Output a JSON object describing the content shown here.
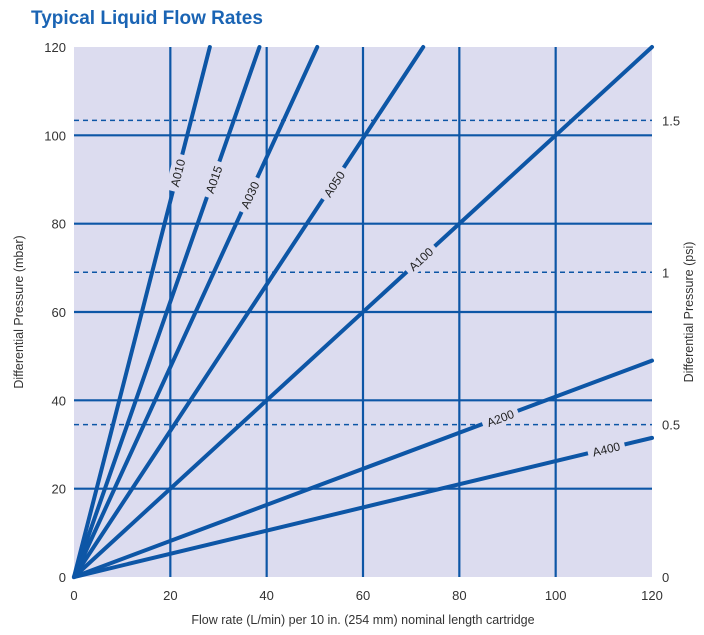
{
  "chart_data": {
    "type": "line",
    "title": "Typical Liquid Flow Rates",
    "xlabel": "Flow rate (L/min) per 10 in. (254 mm) nominal length cartridge",
    "ylabel": "Differential Pressure (mbar)",
    "y2label": "Differential Pressure (psi)",
    "xlim": [
      0,
      120
    ],
    "ylim": [
      0,
      120
    ],
    "x_ticks": [
      0,
      20,
      40,
      60,
      80,
      100,
      120
    ],
    "y_ticks": [
      0,
      20,
      40,
      60,
      80,
      100,
      120
    ],
    "y2_ticks": [
      {
        "label": "0",
        "mbar": 0
      },
      {
        "label": "0.5",
        "mbar": 34.5
      },
      {
        "label": "1",
        "mbar": 69
      },
      {
        "label": "1.5",
        "mbar": 103.4
      }
    ],
    "grid": true,
    "series": [
      {
        "name": "A010",
        "x": [
          0,
          28.2
        ],
        "y": [
          0,
          120
        ],
        "label_at": [
          21.5,
          91.5
        ]
      },
      {
        "name": "A015",
        "x": [
          0,
          38.5
        ],
        "y": [
          0,
          120
        ],
        "label_at": [
          29,
          90
        ]
      },
      {
        "name": "A030",
        "x": [
          0,
          50.5
        ],
        "y": [
          0,
          120
        ],
        "label_at": [
          36.5,
          86.5
        ]
      },
      {
        "name": "A050",
        "x": [
          0,
          72.5
        ],
        "y": [
          0,
          120
        ],
        "label_at": [
          54,
          89
        ]
      },
      {
        "name": "A100",
        "x": [
          0,
          120
        ],
        "y": [
          0,
          120
        ],
        "label_at": [
          72,
          72
        ]
      },
      {
        "name": "A200",
        "x": [
          0,
          120
        ],
        "y": [
          0,
          49
        ],
        "label_at": [
          88.5,
          36
        ]
      },
      {
        "name": "A400",
        "x": [
          0,
          120
        ],
        "y": [
          0,
          31.5
        ],
        "label_at": [
          110.5,
          29
        ]
      }
    ]
  },
  "colors": {
    "plot_background": "#dcdcef",
    "series_line": "#0d56a6",
    "grid_line": "#0d56a6",
    "title": "#1a64b4",
    "text": "#333333"
  }
}
